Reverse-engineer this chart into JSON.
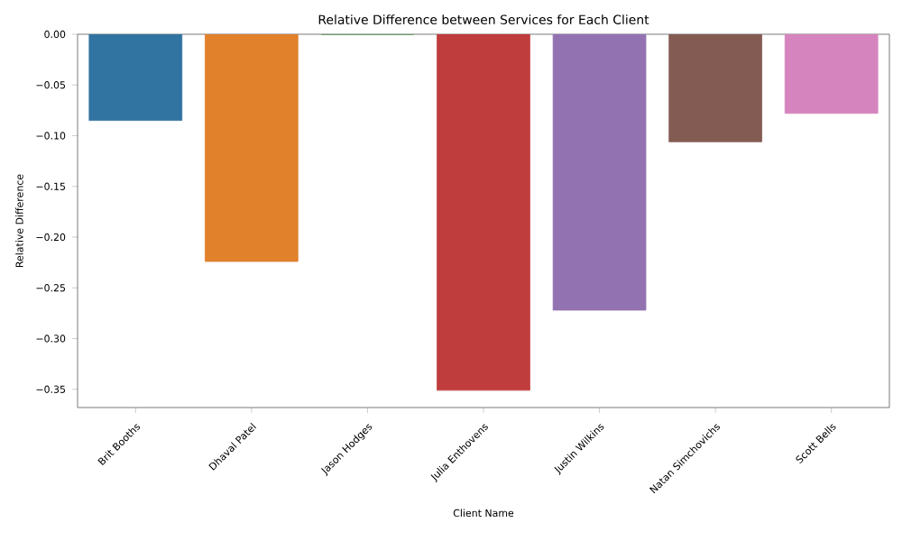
{
  "chart_data": {
    "type": "bar",
    "title": "Relative Difference between Services for Each Client",
    "xlabel": "Client Name",
    "ylabel": "Relative Difference",
    "categories": [
      "Brit Booths",
      "Dhaval Patel",
      "Jason Hodges",
      "Julia Enthovens",
      "Justin Wilkins",
      "Natan Simchovichs",
      "Scott Bells"
    ],
    "values": [
      -0.085,
      -0.224,
      0,
      -0.351,
      -0.272,
      -0.106,
      -0.078
    ],
    "colors": [
      "#3274a1",
      "#e1812c",
      "#3a923a",
      "#c03d3e",
      "#9372b2",
      "#845b53",
      "#d684bd"
    ],
    "ylim": [
      -0.368,
      0.0
    ],
    "yticks": [
      {
        "value": 0,
        "label": "0.00"
      },
      {
        "value": -0.05,
        "label": "−0.05"
      },
      {
        "value": -0.1,
        "label": "−0.10"
      },
      {
        "value": -0.15,
        "label": "−0.15"
      },
      {
        "value": -0.2,
        "label": "−0.20"
      },
      {
        "value": -0.25,
        "label": "−0.25"
      },
      {
        "value": -0.3,
        "label": "−0.30"
      },
      {
        "value": -0.35,
        "label": "−0.35"
      }
    ],
    "grid": false
  }
}
